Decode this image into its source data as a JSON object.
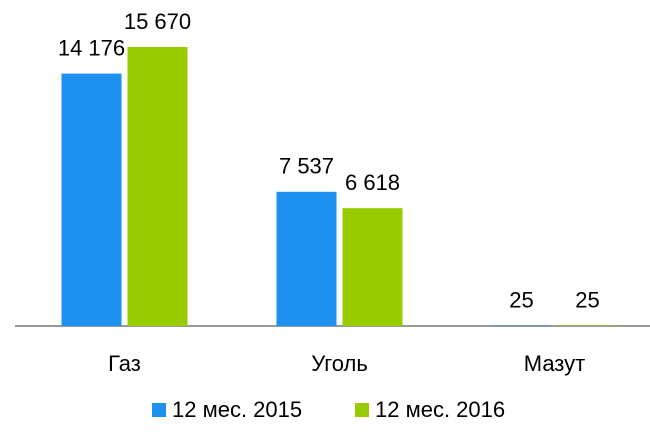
{
  "chart_data": {
    "type": "bar",
    "categories": [
      "Газ",
      "Уголь",
      "Мазут"
    ],
    "series": [
      {
        "name": "12 мес. 2015",
        "color": "#1e90f0",
        "values": [
          14176,
          7537,
          25
        ],
        "value_labels": [
          "14 176",
          "7 537",
          "25"
        ]
      },
      {
        "name": "12 мес. 2016",
        "color": "#99cc00",
        "values": [
          15670,
          6618,
          25
        ],
        "value_labels": [
          "15 670",
          "6 618",
          "25"
        ]
      }
    ]
  }
}
